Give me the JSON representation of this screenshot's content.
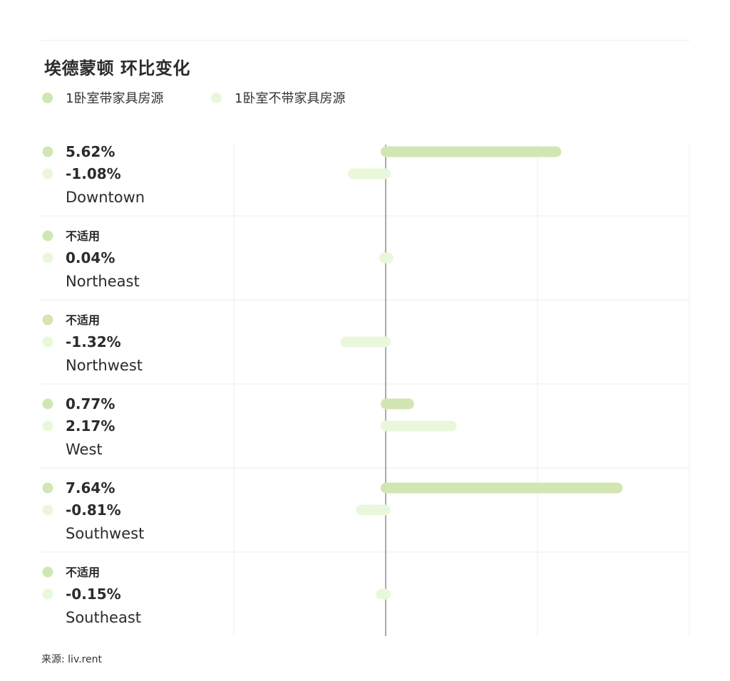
{
  "title": "埃德蒙顿 环比变化",
  "colors": {
    "furnished": "#d2e6b4",
    "unfurnished": "#e9f8da",
    "axis": "#555555",
    "grid": "#eeeeee",
    "text": "#2b2b2b"
  },
  "legend": [
    {
      "label": "1卧室带家具房源",
      "color": "#d2e6b4"
    },
    {
      "label": "1卧室不带家具房源",
      "color": "#e9f8da"
    }
  ],
  "chart_data": {
    "type": "bar",
    "orientation": "horizontal",
    "title": "埃德蒙顿 环比变化",
    "categories": [
      "Downtown",
      "Northeast",
      "Northwest",
      "West",
      "Southwest",
      "Southeast"
    ],
    "series": [
      {
        "name": "1卧室带家具房源",
        "values": [
          5.62,
          null,
          null,
          0.77,
          7.64,
          null
        ],
        "labels": [
          "5.62%",
          "不适用",
          "不适用",
          "0.77%",
          "7.64%",
          "不适用"
        ]
      },
      {
        "name": "1卧室不带家具房源",
        "values": [
          -1.08,
          0.04,
          -1.32,
          2.17,
          -0.81,
          -0.15
        ],
        "labels": [
          "-1.08%",
          "0.04%",
          "-1.32%",
          "2.17%",
          "-0.81%",
          "-0.15%"
        ]
      }
    ],
    "xlim": [
      -5,
      10
    ],
    "grid": true,
    "legend_position": "top-left"
  },
  "source": "来源: liv.rent"
}
